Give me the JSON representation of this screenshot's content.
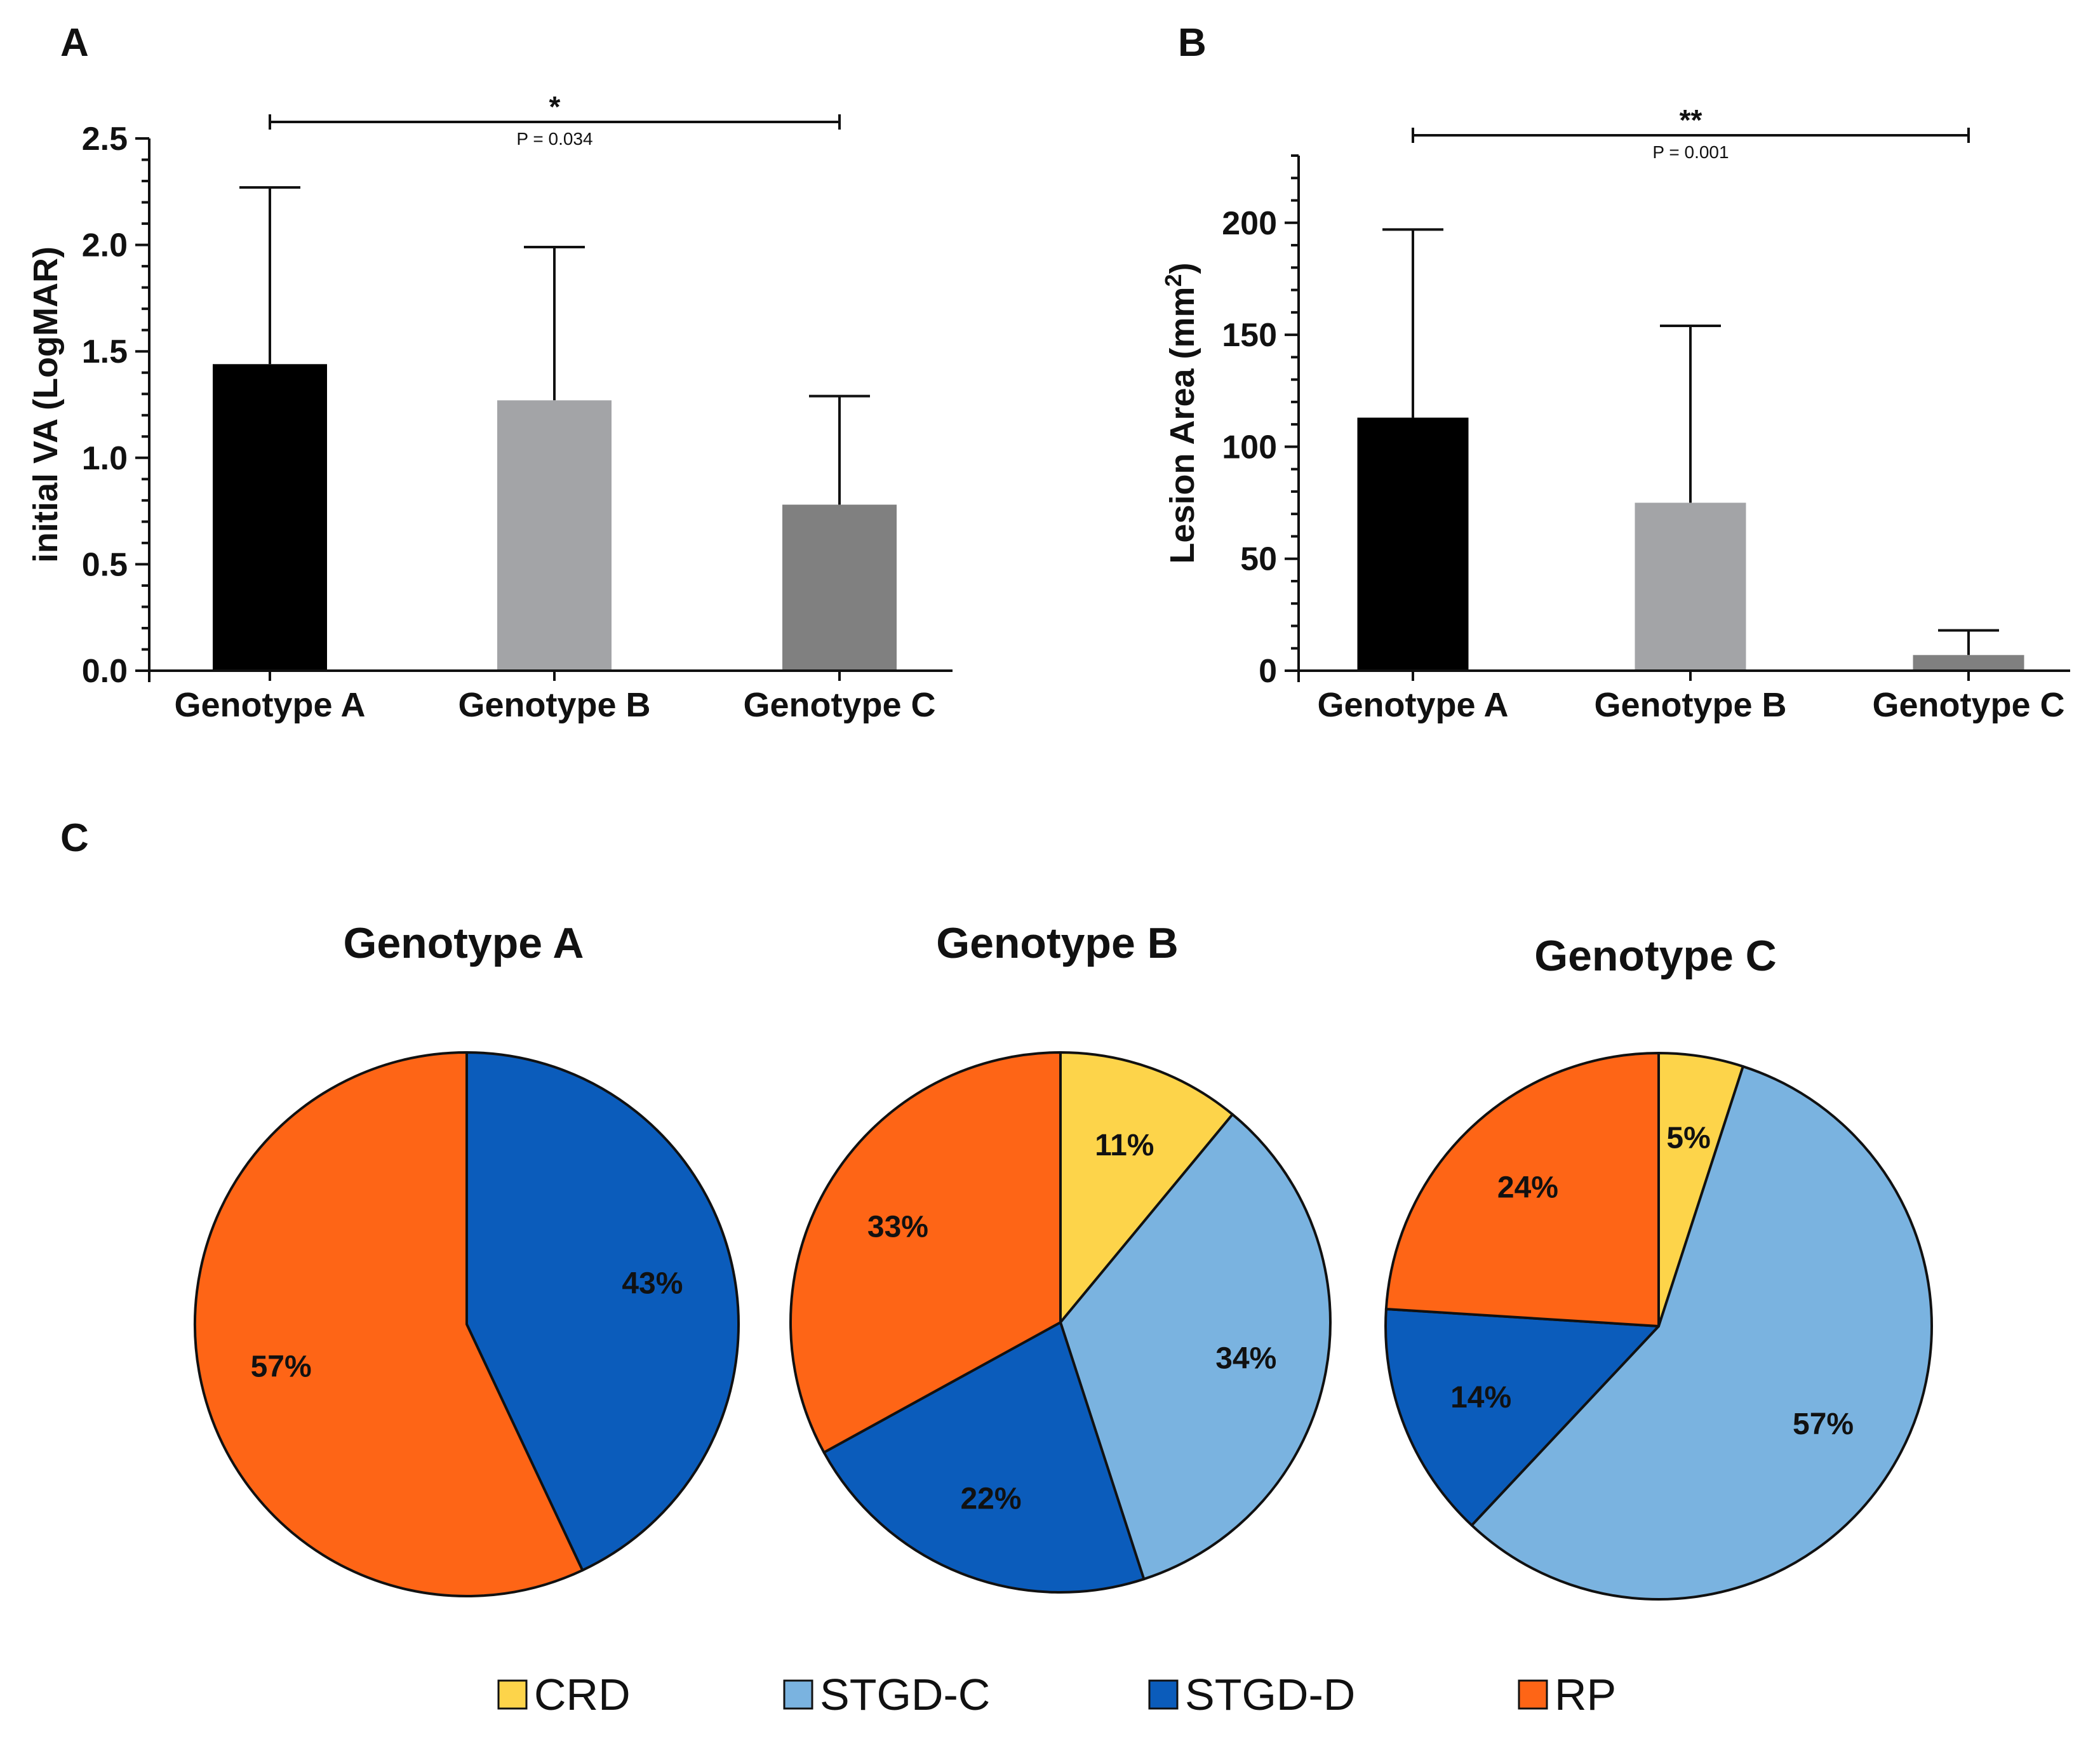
{
  "panels": {
    "a": "A",
    "b": "B",
    "c": "C"
  },
  "chart_data": [
    {
      "type": "bar",
      "panel": "A",
      "categories": [
        "Genotype A",
        "Genotype B",
        "Genotype C"
      ],
      "values": [
        1.44,
        1.27,
        0.78
      ],
      "error_upper": [
        2.27,
        1.99,
        1.29
      ],
      "colors": [
        "#000000",
        "#a3a4a7",
        "#808080"
      ],
      "ylabel": "initial VA (LogMAR)",
      "ylim": [
        0,
        2.5
      ],
      "yticks": [
        "0.0",
        "0.5",
        "1.0",
        "1.5",
        "2.0",
        "2.5"
      ],
      "significance": {
        "from": "Genotype A",
        "to": "Genotype C",
        "stars": "*",
        "p_text": "P = 0.034"
      }
    },
    {
      "type": "bar",
      "panel": "B",
      "categories": [
        "Genotype A",
        "Genotype B",
        "Genotype C"
      ],
      "values": [
        113,
        75,
        7
      ],
      "error_upper": [
        197,
        154,
        18
      ],
      "colors": [
        "#000000",
        "#a3a4a7",
        "#808080"
      ],
      "ylabel": "Lesion Area (mm",
      "ylabel_sup": "2",
      "ylabel_end": ")",
      "ylim": [
        0,
        230
      ],
      "yticks": [
        "0",
        "50",
        "100",
        "150",
        "200"
      ],
      "significance": {
        "from": "Genotype A",
        "to": "Genotype C",
        "stars": "**",
        "p_text": "P = 0.001"
      }
    },
    {
      "type": "pie",
      "panel": "C",
      "title": "Genotype A",
      "slices": [
        {
          "name": "STGD-D",
          "value": 43,
          "label": "43%"
        },
        {
          "name": "RP",
          "value": 57,
          "label": "57%"
        }
      ]
    },
    {
      "type": "pie",
      "panel": "C",
      "title": "Genotype B",
      "slices": [
        {
          "name": "CRD",
          "value": 11,
          "label": "11%"
        },
        {
          "name": "STGD-C",
          "value": 34,
          "label": "34%"
        },
        {
          "name": "STGD-D",
          "value": 22,
          "label": "22%"
        },
        {
          "name": "RP",
          "value": 33,
          "label": "33%"
        }
      ]
    },
    {
      "type": "pie",
      "panel": "C",
      "title": "Genotype C",
      "slices": [
        {
          "name": "CRD",
          "value": 5,
          "label": "5%"
        },
        {
          "name": "STGD-C",
          "value": 57,
          "label": "57%"
        },
        {
          "name": "STGD-D",
          "value": 14,
          "label": "14%"
        },
        {
          "name": "RP",
          "value": 24,
          "label": "24%"
        }
      ]
    }
  ],
  "legend": [
    {
      "name": "CRD",
      "color": "#fdd44a"
    },
    {
      "name": "STGD-C",
      "color": "#7ab3e0"
    },
    {
      "name": "STGD-D",
      "color": "#0b5cbb"
    },
    {
      "name": "RP",
      "color": "#fe6516"
    }
  ]
}
